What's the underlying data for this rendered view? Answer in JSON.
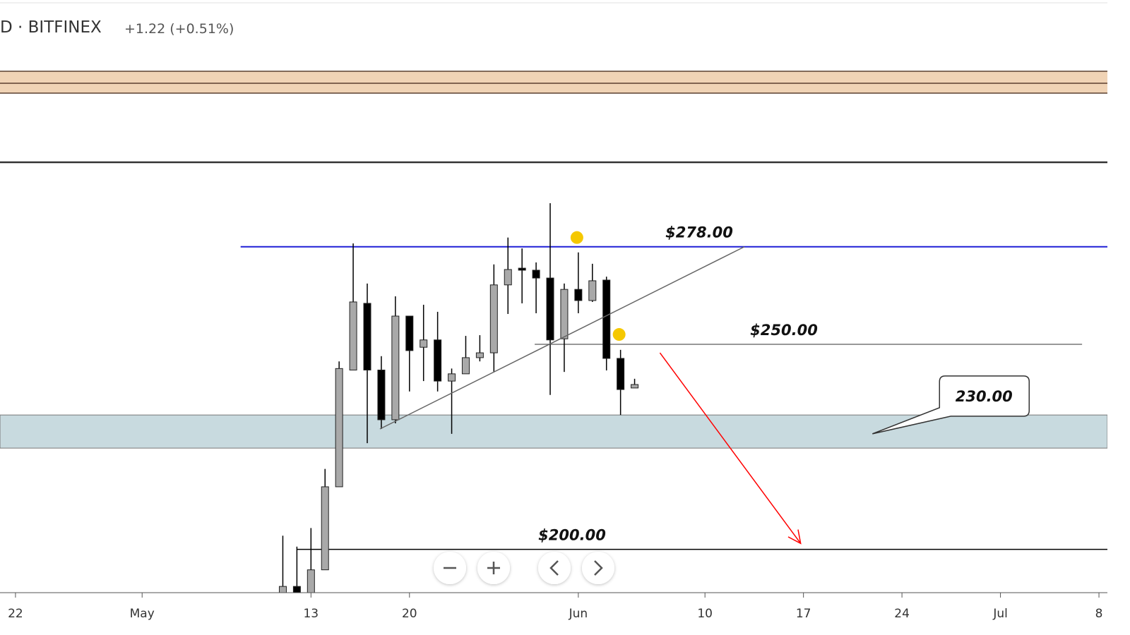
{
  "header": {
    "symbol": "D · BITFINEX",
    "change": "+1.22 (+0.51%)"
  },
  "chart_data": {
    "type": "candlestick",
    "yscale": "log",
    "xlim": [
      -1.1,
      77.6
    ],
    "ylim": [
      190.8,
      304.3
    ],
    "xticks": [
      {
        "value": 0,
        "label": "22"
      },
      {
        "value": 9,
        "label": "May"
      },
      {
        "value": 21,
        "label": "13"
      },
      {
        "value": 28,
        "label": "20"
      },
      {
        "value": 40,
        "label": "Jun"
      },
      {
        "value": 49,
        "label": "10"
      },
      {
        "value": 56,
        "label": "17"
      },
      {
        "value": 63,
        "label": "24"
      },
      {
        "value": 70,
        "label": "Jul"
      },
      {
        "value": 77,
        "label": "8"
      }
    ],
    "x": [
      19,
      20,
      21,
      22,
      23,
      24,
      25,
      26,
      27,
      28,
      29,
      30,
      31,
      32,
      33,
      34,
      35,
      36,
      37,
      38,
      39,
      40,
      41,
      42,
      43,
      44
    ],
    "open": [
      190.5,
      192.1,
      190.5,
      195.6,
      214.1,
      243.1,
      261.4,
      243.1,
      230.3,
      257.8,
      249.2,
      251.2,
      240.2,
      242.1,
      246.4,
      247.7,
      266.7,
      271.6,
      271,
      268.7,
      251.5,
      265.4,
      262.2,
      268.1,
      246.2,
      238.4
    ],
    "high": [
      203,
      200.6,
      204.7,
      218.3,
      245.4,
      279,
      267.1,
      246.8,
      263.4,
      257.8,
      261,
      259,
      243.5,
      252.3,
      252.5,
      272.7,
      280.8,
      277.5,
      273.3,
      291.5,
      267.1,
      276.3,
      272.9,
      269.1,
      248.5,
      240.8
    ],
    "low": [
      189,
      189,
      189,
      195.6,
      214.1,
      243.1,
      224.5,
      228,
      229.4,
      237.5,
      240.2,
      237.5,
      226.8,
      242.1,
      245.4,
      242.6,
      258.4,
      261.4,
      258.6,
      236.6,
      242.6,
      258.6,
      261.8,
      243,
      231.5,
      238.4
    ],
    "close": [
      192.1,
      190.5,
      195.6,
      214.1,
      243.5,
      261.8,
      243.1,
      230.3,
      257.8,
      248.3,
      251.2,
      240.2,
      242.1,
      246.4,
      247.7,
      266.7,
      271.2,
      271,
      268.7,
      251.2,
      265.4,
      262.2,
      267.9,
      246.2,
      238,
      239.3
    ],
    "up_color": "#a9a9a9",
    "down_color": "#000000",
    "levels": [
      {
        "price": 278,
        "label": "$278.00",
        "x": [
          16,
          77.6
        ],
        "color": "#1f1fd6"
      },
      {
        "price": 250,
        "label": "$250.00",
        "x": [
          36.9,
          75.8
        ],
        "color": "#777777"
      },
      {
        "price": 200,
        "label": "$200.00",
        "x": [
          20,
          77.6
        ],
        "color": "#000000"
      }
    ],
    "zone": {
      "low": 223.3,
      "high": 231.5,
      "color": "#c8dadf"
    },
    "callout": {
      "value": 230,
      "label": "230.00",
      "x": 60.9,
      "price": 226.8
    },
    "trendline": {
      "x": [
        25.9,
        51.8
      ],
      "y": [
        228,
        278
      ]
    },
    "arrow": {
      "x": [
        45.8,
        55.8
      ],
      "y": [
        247.7,
        201.3
      ],
      "color": "#ff0000"
    },
    "markers": {
      "x": [
        39.9,
        42.9
      ],
      "y": [
        280.8,
        252.7
      ],
      "color": "#f5c800"
    }
  }
}
